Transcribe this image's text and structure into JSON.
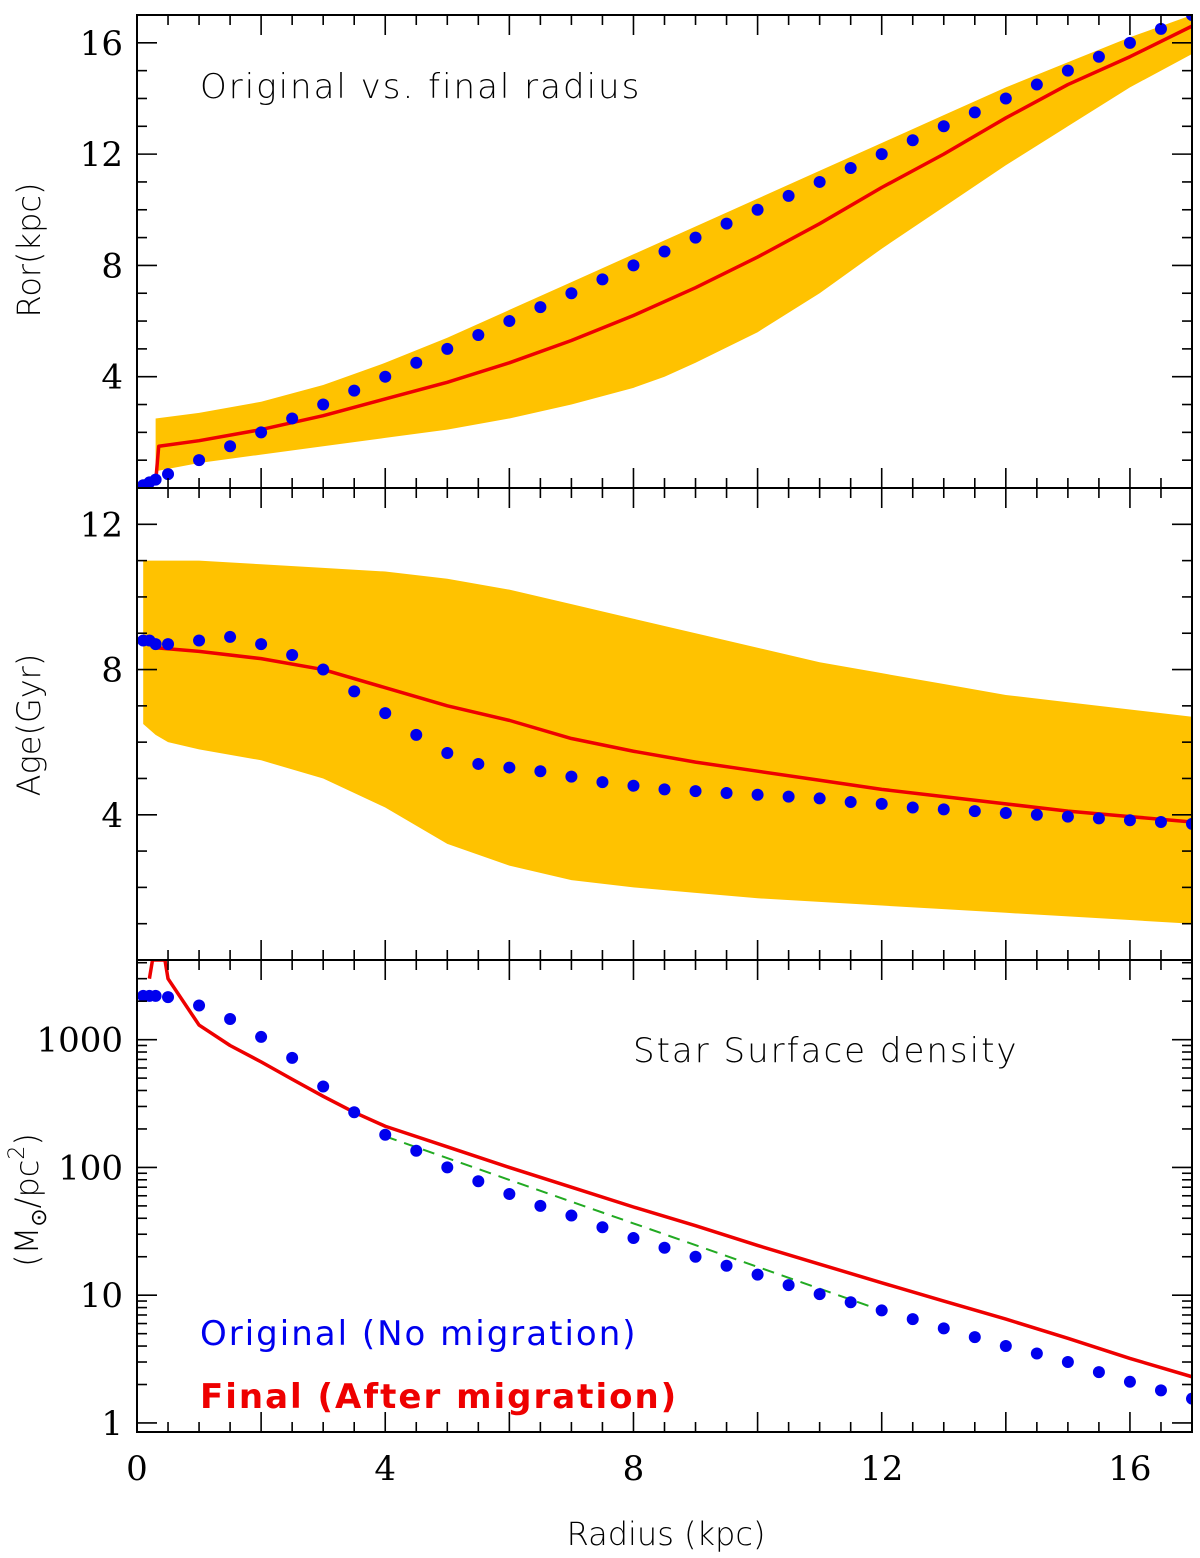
{
  "colors": {
    "band": "#FFC200",
    "original": "#0000EE",
    "final": "#EE0000",
    "fit": "#22AA22",
    "axis": "#000000"
  },
  "chart_data": [
    {
      "type": "line",
      "panel": "top",
      "annotation": "Original vs. final radius",
      "ylabel": "Ror(kpc)",
      "xlim": [
        0,
        17
      ],
      "ylim": [
        0,
        17
      ],
      "yticks": [
        4,
        8,
        12,
        16
      ],
      "ytick_labels": [
        "4",
        "8",
        "12",
        "16"
      ],
      "original_points": {
        "x": [
          0.1,
          0.2,
          0.3,
          0.5,
          1,
          1.5,
          2,
          2.5,
          3,
          3.5,
          4,
          4.5,
          5,
          5.5,
          6,
          6.5,
          7,
          7.5,
          8,
          8.5,
          9,
          9.5,
          10,
          10.5,
          11,
          11.5,
          12,
          12.5,
          13,
          13.5,
          14,
          14.5,
          15,
          15.5,
          16,
          16.5,
          17
        ],
        "y": [
          0.1,
          0.2,
          0.3,
          0.5,
          1,
          1.5,
          2,
          2.5,
          3,
          3.5,
          4,
          4.5,
          5,
          5.5,
          6,
          6.5,
          7,
          7.5,
          8,
          8.5,
          9,
          9.5,
          10,
          10.5,
          11,
          11.5,
          12,
          12.5,
          13,
          13.5,
          14,
          14.5,
          15,
          15.5,
          16,
          16.5,
          17
        ]
      },
      "final_line": {
        "x": [
          0.3,
          0.35,
          1,
          2,
          3,
          4,
          5,
          6,
          7,
          8,
          9,
          10,
          11,
          12,
          13,
          14,
          15,
          16,
          17
        ],
        "y": [
          0.2,
          1.5,
          1.7,
          2.1,
          2.6,
          3.2,
          3.8,
          4.5,
          5.3,
          6.2,
          7.2,
          8.3,
          9.5,
          10.8,
          12.0,
          13.3,
          14.5,
          15.5,
          16.6
        ]
      },
      "band": {
        "x": [
          0.3,
          1,
          2,
          3,
          4,
          5,
          6,
          7,
          8,
          8.5,
          9,
          10,
          11,
          12,
          13,
          14,
          15,
          16,
          17
        ],
        "upper": [
          2.5,
          2.7,
          3.1,
          3.7,
          4.5,
          5.4,
          6.4,
          7.4,
          8.4,
          8.9,
          9.4,
          10.4,
          11.4,
          12.4,
          13.4,
          14.4,
          15.3,
          16.2,
          17.0
        ],
        "lower": [
          0.6,
          0.9,
          1.2,
          1.5,
          1.8,
          2.1,
          2.5,
          3.0,
          3.6,
          4.0,
          4.5,
          5.6,
          7.0,
          8.6,
          10.1,
          11.6,
          13.0,
          14.4,
          15.6
        ]
      }
    },
    {
      "type": "line",
      "panel": "middle",
      "ylabel": "Age(Gyr)",
      "xlim": [
        0,
        17
      ],
      "ylim": [
        0,
        13
      ],
      "yticks": [
        4,
        8,
        12
      ],
      "ytick_labels": [
        "4",
        "8",
        "12"
      ],
      "original_points": {
        "x": [
          0.1,
          0.2,
          0.3,
          0.5,
          1,
          1.5,
          2,
          2.5,
          3,
          3.5,
          4,
          4.5,
          5,
          5.5,
          6,
          6.5,
          7,
          7.5,
          8,
          8.5,
          9,
          9.5,
          10,
          10.5,
          11,
          11.5,
          12,
          12.5,
          13,
          13.5,
          14,
          14.5,
          15,
          15.5,
          16,
          16.5,
          17
        ],
        "y": [
          8.8,
          8.8,
          8.7,
          8.7,
          8.8,
          8.9,
          8.7,
          8.4,
          8.0,
          7.4,
          6.8,
          6.2,
          5.7,
          5.4,
          5.3,
          5.2,
          5.05,
          4.9,
          4.8,
          4.7,
          4.65,
          4.6,
          4.55,
          4.5,
          4.45,
          4.35,
          4.3,
          4.2,
          4.15,
          4.1,
          4.05,
          4.0,
          3.95,
          3.9,
          3.85,
          3.8,
          3.75
        ]
      },
      "final_line": {
        "x": [
          0.3,
          1,
          2,
          3,
          4,
          5,
          6,
          7,
          8,
          9,
          10,
          11,
          12,
          13,
          14,
          15,
          16,
          17
        ],
        "y": [
          8.6,
          8.5,
          8.3,
          8.0,
          7.5,
          7.0,
          6.6,
          6.1,
          5.75,
          5.45,
          5.2,
          4.95,
          4.7,
          4.5,
          4.3,
          4.1,
          3.95,
          3.8
        ]
      },
      "band": {
        "x": [
          0.1,
          0.3,
          0.5,
          1,
          2,
          3,
          4,
          5,
          6,
          7,
          8,
          9,
          10,
          11,
          12,
          13,
          14,
          15,
          16,
          17
        ],
        "upper": [
          11.0,
          11.0,
          11.0,
          11.0,
          10.9,
          10.8,
          10.7,
          10.5,
          10.2,
          9.8,
          9.4,
          9.0,
          8.6,
          8.2,
          7.9,
          7.6,
          7.3,
          7.1,
          6.9,
          6.7
        ],
        "lower": [
          6.5,
          6.2,
          6.0,
          5.8,
          5.5,
          5.0,
          4.2,
          3.2,
          2.6,
          2.2,
          2.0,
          1.85,
          1.7,
          1.6,
          1.5,
          1.4,
          1.3,
          1.2,
          1.1,
          1.0
        ]
      }
    },
    {
      "type": "line",
      "panel": "bottom",
      "annotation": "Star Surface density",
      "ylabel_main": "(M",
      "ylabel_sun": "⊙",
      "ylabel_unit": "/pc",
      "ylabel_power": "2",
      "ylabel_close": ")",
      "xlabel": "Radius (kpc)",
      "yscale": "log",
      "xlim": [
        0,
        17
      ],
      "ylim": [
        0.85,
        4200
      ],
      "yticks": [
        1,
        10,
        100,
        1000
      ],
      "ytick_labels": [
        "1",
        "10",
        "100",
        "1000"
      ],
      "xticks": [
        0,
        4,
        8,
        12,
        16
      ],
      "xtick_labels": [
        "0",
        "4",
        "8",
        "12",
        "16"
      ],
      "original_points": {
        "x": [
          0.1,
          0.2,
          0.3,
          0.5,
          1,
          1.5,
          2,
          2.5,
          3,
          3.5,
          4,
          4.5,
          5,
          5.5,
          6,
          6.5,
          7,
          7.5,
          8,
          8.5,
          9,
          9.5,
          10,
          10.5,
          11,
          11.5,
          12,
          12.5,
          13,
          13.5,
          14,
          14.5,
          15,
          15.5,
          16,
          16.5,
          17
        ],
        "y": [
          2200,
          2200,
          2200,
          2150,
          1850,
          1450,
          1050,
          720,
          430,
          270,
          180,
          135,
          100,
          78,
          62,
          50,
          42,
          34,
          28,
          23.5,
          20,
          17,
          14.5,
          12,
          10.2,
          8.8,
          7.6,
          6.5,
          5.5,
          4.7,
          4.0,
          3.5,
          3.0,
          2.5,
          2.1,
          1.8,
          1.55
        ]
      },
      "final_line": {
        "x": [
          0.2,
          0.25,
          0.45,
          0.5,
          1,
          1.5,
          2,
          2.5,
          3,
          3.5,
          4,
          5,
          6,
          7,
          8,
          9,
          10,
          11,
          12,
          13,
          14,
          15,
          16,
          17
        ],
        "y": [
          3000,
          4200,
          4200,
          3000,
          1300,
          900,
          670,
          490,
          360,
          270,
          210,
          145,
          100,
          70,
          49,
          35,
          24.5,
          17.5,
          12.5,
          9.0,
          6.5,
          4.6,
          3.2,
          2.3
        ]
      },
      "fit_line": {
        "x": [
          4,
          12
        ],
        "y": [
          175,
          7.6
        ]
      },
      "legend": [
        {
          "label": "Original (No migration)",
          "series": "original"
        },
        {
          "label": "Final (After migration)",
          "series": "final"
        }
      ]
    }
  ]
}
